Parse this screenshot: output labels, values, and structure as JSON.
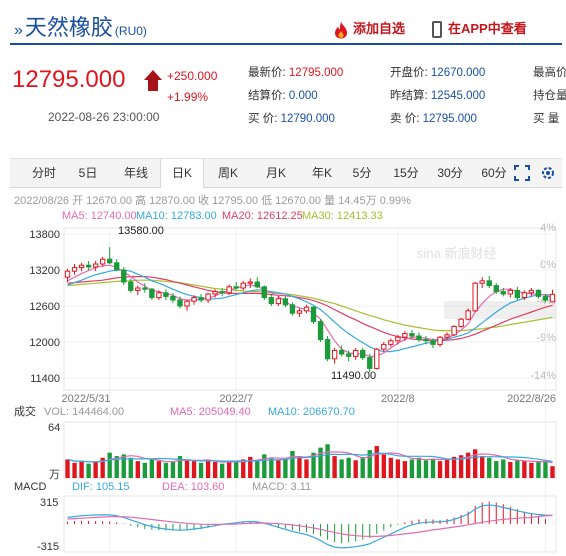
{
  "header": {
    "title": "天然橡胶",
    "code": "(RU0)",
    "add_favorite": "添加自选",
    "view_in_app": "在APP中查看"
  },
  "quote": {
    "price": "12795.000",
    "change": "+250.000",
    "change_pct": "+1.99%",
    "datetime": "2022-08-26 23:00:00",
    "latest_label": "最新价:",
    "latest": "12795.000",
    "settle_label": "结算价:",
    "settle": "0.000",
    "buy_label": "买  价:",
    "buy": "12790.000",
    "open_label": "开盘价:",
    "open": "12670.000",
    "prev_settle_label": "昨结算:",
    "prev_settle": "12545.000",
    "sell_label": "卖  价:",
    "sell": "12795.000",
    "high_label": "最高价",
    "oi_label": "持仓量",
    "buy_vol_label": "买  量"
  },
  "tabs": [
    "分时",
    "5日",
    "年线",
    "日K",
    "周K",
    "月K",
    "年K",
    "5分",
    "15分",
    "30分",
    "60分"
  ],
  "active_tab": "日K",
  "chart_data": {
    "type": "candlestick",
    "info_line": "2022/08/26 开 12670.00 高 12870.00 收 12795.00 低 12670.00 量 14.45万 0.99%",
    "ma": {
      "MA5": "MA5: 12740.00",
      "MA10": "MA10: 12783.00",
      "MA20": "MA20: 12612.25",
      "MA30": "MA30: 12413.33"
    },
    "y_ticks": [
      "13800",
      "13200",
      "12600",
      "12000",
      "11400"
    ],
    "pct_ticks": [
      "4%",
      "0%",
      "-4%",
      "-9%",
      "-14%"
    ],
    "x_ticks": [
      "2022/5/31",
      "2022/7",
      "2022/8",
      "2022/8/26"
    ],
    "ylim": [
      11200,
      13900
    ],
    "high_label": "13580.00",
    "low_label": "11490.00",
    "watermark": "sina 新浪财经",
    "volume": {
      "title": "成交",
      "vol": "VOL: 144464.00",
      "ma5": "MA5: 205049.40",
      "ma10": "MA10: 206670.70",
      "y_top": "64",
      "unit": "万"
    },
    "macd": {
      "title": "MACD",
      "dif": "DIF: 105.15",
      "dea": "DEA: 103.60",
      "macd": "MACD: 3.11",
      "y_top": "315",
      "y_bottom": "-315"
    },
    "candles": [
      [
        13080,
        13220,
        13000,
        13180
      ],
      [
        13180,
        13300,
        13120,
        13240
      ],
      [
        13240,
        13320,
        13180,
        13280
      ],
      [
        13280,
        13350,
        13200,
        13250
      ],
      [
        13250,
        13350,
        13180,
        13300
      ],
      [
        13300,
        13420,
        13250,
        13380
      ],
      [
        13380,
        13580,
        13300,
        13320
      ],
      [
        13320,
        13380,
        13180,
        13200
      ],
      [
        13200,
        13250,
        12950,
        13000
      ],
      [
        13000,
        13060,
        12820,
        12860
      ],
      [
        12860,
        12940,
        12780,
        12900
      ],
      [
        12900,
        12980,
        12820,
        12880
      ],
      [
        12880,
        12900,
        12700,
        12740
      ],
      [
        12740,
        12860,
        12700,
        12820
      ],
      [
        12820,
        12880,
        12700,
        12760
      ],
      [
        12760,
        12820,
        12650,
        12700
      ],
      [
        12700,
        12760,
        12560,
        12600
      ],
      [
        12600,
        12700,
        12520,
        12680
      ],
      [
        12680,
        12780,
        12620,
        12740
      ],
      [
        12740,
        12800,
        12660,
        12700
      ],
      [
        12700,
        12820,
        12650,
        12800
      ],
      [
        12800,
        12880,
        12740,
        12840
      ],
      [
        12840,
        12900,
        12760,
        12820
      ],
      [
        12820,
        12960,
        12780,
        12920
      ],
      [
        12920,
        13000,
        12860,
        12900
      ],
      [
        12900,
        13020,
        12860,
        12980
      ],
      [
        12980,
        13060,
        12900,
        13000
      ],
      [
        13000,
        13080,
        12900,
        12920
      ],
      [
        12920,
        12940,
        12700,
        12740
      ],
      [
        12740,
        12800,
        12600,
        12640
      ],
      [
        12640,
        12760,
        12600,
        12720
      ],
      [
        12720,
        12760,
        12580,
        12620
      ],
      [
        12620,
        12660,
        12440,
        12480
      ],
      [
        12480,
        12560,
        12420,
        12520
      ],
      [
        12520,
        12620,
        12480,
        12580
      ],
      [
        12580,
        12600,
        12300,
        12340
      ],
      [
        12340,
        12380,
        12000,
        12040
      ],
      [
        12040,
        12100,
        11680,
        11720
      ],
      [
        11720,
        11900,
        11640,
        11860
      ],
      [
        11860,
        11940,
        11760,
        11800
      ],
      [
        11800,
        11860,
        11680,
        11760
      ],
      [
        11760,
        11900,
        11700,
        11860
      ],
      [
        11860,
        11900,
        11700,
        11740
      ],
      [
        11740,
        11800,
        11490,
        11560
      ],
      [
        11560,
        11900,
        11540,
        11880
      ],
      [
        11880,
        12000,
        11840,
        11960
      ],
      [
        11960,
        12060,
        11920,
        12020
      ],
      [
        12020,
        12120,
        11960,
        12080
      ],
      [
        12080,
        12180,
        12020,
        12140
      ],
      [
        12140,
        12200,
        12060,
        12100
      ],
      [
        12100,
        12160,
        12000,
        12040
      ],
      [
        12040,
        12100,
        11960,
        12020
      ],
      [
        12020,
        12060,
        11900,
        11960
      ],
      [
        11960,
        12100,
        11920,
        12080
      ],
      [
        12080,
        12160,
        12040,
        12120
      ],
      [
        12120,
        12280,
        12100,
        12260
      ],
      [
        12260,
        12400,
        12240,
        12380
      ],
      [
        12380,
        12560,
        12360,
        12520
      ],
      [
        12520,
        13000,
        12500,
        12980
      ],
      [
        12980,
        13080,
        12900,
        13020
      ],
      [
        13020,
        13100,
        12900,
        12940
      ],
      [
        12940,
        12980,
        12800,
        12840
      ],
      [
        12840,
        12900,
        12760,
        12800
      ],
      [
        12800,
        12900,
        12740,
        12860
      ],
      [
        12860,
        12920,
        12700,
        12740
      ],
      [
        12740,
        12860,
        12700,
        12820
      ],
      [
        12820,
        12900,
        12760,
        12860
      ],
      [
        12860,
        12880,
        12720,
        12760
      ],
      [
        12760,
        12800,
        12660,
        12700
      ],
      [
        12670,
        12870,
        12670,
        12795
      ]
    ],
    "ma5_line": [
      13020,
      13080,
      13140,
      13190,
      13240,
      13270,
      13280,
      13240,
      13170,
      13090,
      13000,
      12930,
      12860,
      12840,
      12810,
      12780,
      12720,
      12700,
      12700,
      12710,
      12730,
      12770,
      12820,
      12860,
      12900,
      12930,
      12950,
      12930,
      12870,
      12820,
      12760,
      12680,
      12600,
      12570,
      12540,
      12480,
      12380,
      12200,
      12020,
      11880,
      11820,
      11800,
      11800,
      11760,
      11760,
      11820,
      11900,
      11980,
      12040,
      12080,
      12080,
      12060,
      12040,
      12040,
      12070,
      12120,
      12200,
      12300,
      12500,
      12640,
      12760,
      12840,
      12880,
      12880,
      12840,
      12820,
      12800,
      12800,
      12780,
      12740
    ],
    "ma10_line": [
      12950,
      12990,
      13030,
      13080,
      13120,
      13150,
      13180,
      13200,
      13200,
      13180,
      13130,
      13080,
      13020,
      12980,
      12930,
      12880,
      12830,
      12790,
      12760,
      12740,
      12720,
      12720,
      12730,
      12760,
      12790,
      12820,
      12850,
      12870,
      12860,
      12840,
      12820,
      12800,
      12760,
      12720,
      12670,
      12610,
      12540,
      12440,
      12330,
      12230,
      12140,
      12060,
      11990,
      11920,
      11870,
      11840,
      11840,
      11860,
      11890,
      11920,
      11950,
      11980,
      12000,
      12030,
      12050,
      12080,
      12110,
      12150,
      12230,
      12320,
      12410,
      12500,
      12580,
      12650,
      12690,
      12730,
      12760,
      12790,
      12790,
      12783
    ],
    "ma20_line": [
      12980,
      12990,
      13000,
      13010,
      13020,
      13030,
      13050,
      13070,
      13080,
      13090,
      13090,
      13090,
      13080,
      13060,
      13040,
      13010,
      12980,
      12950,
      12920,
      12890,
      12860,
      12840,
      12820,
      12810,
      12810,
      12810,
      12810,
      12810,
      12800,
      12790,
      12780,
      12770,
      12760,
      12740,
      12720,
      12690,
      12650,
      12600,
      12540,
      12480,
      12420,
      12370,
      12310,
      12260,
      12210,
      12160,
      12120,
      12090,
      12070,
      12050,
      12040,
      12030,
      12020,
      12020,
      12030,
      12040,
      12060,
      12090,
      12130,
      12180,
      12230,
      12280,
      12330,
      12380,
      12420,
      12460,
      12500,
      12540,
      12580,
      12612
    ],
    "ma30_line": [
      12940,
      12950,
      12960,
      12970,
      12980,
      12990,
      13000,
      13010,
      13020,
      13020,
      13030,
      13030,
      13030,
      13020,
      13010,
      13000,
      12990,
      12970,
      12950,
      12930,
      12910,
      12890,
      12880,
      12870,
      12860,
      12850,
      12840,
      12840,
      12830,
      12820,
      12810,
      12800,
      12790,
      12770,
      12750,
      12730,
      12700,
      12670,
      12640,
      12600,
      12560,
      12520,
      12480,
      12440,
      12410,
      12370,
      12340,
      12310,
      12280,
      12260,
      12240,
      12220,
      12200,
      12190,
      12190,
      12190,
      12190,
      12200,
      12210,
      12220,
      12240,
      12250,
      12270,
      12290,
      12310,
      12330,
      12350,
      12370,
      12390,
      12413
    ],
    "volumes": [
      22,
      18,
      20,
      17,
      19,
      24,
      30,
      26,
      28,
      24,
      20,
      18,
      22,
      20,
      18,
      19,
      26,
      22,
      20,
      18,
      21,
      19,
      17,
      20,
      19,
      22,
      25,
      20,
      28,
      24,
      21,
      23,
      32,
      26,
      22,
      30,
      36,
      40,
      26,
      22,
      24,
      21,
      25,
      33,
      38,
      28,
      24,
      22,
      20,
      22,
      24,
      21,
      23,
      20,
      22,
      25,
      27,
      30,
      34,
      26,
      24,
      20,
      22,
      19,
      21,
      20,
      18,
      19,
      20,
      14
    ],
    "macd_bars": [
      30,
      35,
      40,
      38,
      36,
      34,
      30,
      20,
      5,
      -20,
      -40,
      -60,
      -70,
      -75,
      -80,
      -80,
      -85,
      -80,
      -70,
      -60,
      -45,
      -30,
      -15,
      0,
      10,
      20,
      25,
      20,
      5,
      -15,
      -35,
      -55,
      -75,
      -90,
      -100,
      -120,
      -150,
      -190,
      -220,
      -230,
      -220,
      -210,
      -190,
      -170,
      -120,
      -80,
      -40,
      -10,
      20,
      40,
      55,
      60,
      55,
      50,
      60,
      80,
      110,
      150,
      220,
      260,
      270,
      260,
      240,
      210,
      180,
      150,
      120,
      90,
      60,
      3
    ],
    "dif_line": [
      80,
      90,
      100,
      105,
      110,
      112,
      110,
      100,
      80,
      50,
      20,
      -10,
      -30,
      -50,
      -60,
      -70,
      -75,
      -70,
      -60,
      -50,
      -35,
      -20,
      -5,
      5,
      15,
      25,
      30,
      25,
      10,
      -15,
      -40,
      -65,
      -90,
      -110,
      -130,
      -160,
      -200,
      -250,
      -280,
      -290,
      -285,
      -275,
      -260,
      -240,
      -200,
      -160,
      -120,
      -80,
      -40,
      -10,
      10,
      20,
      25,
      25,
      35,
      55,
      85,
      120,
      180,
      220,
      230,
      220,
      200,
      180,
      160,
      140,
      125,
      115,
      108,
      105
    ],
    "dea_line": [
      60,
      65,
      70,
      75,
      80,
      85,
      88,
      90,
      88,
      82,
      74,
      64,
      54,
      44,
      34,
      24,
      16,
      8,
      2,
      -2,
      -4,
      -5,
      -4,
      -3,
      0,
      4,
      8,
      11,
      11,
      9,
      4,
      -3,
      -12,
      -22,
      -34,
      -48,
      -64,
      -83,
      -102,
      -120,
      -133,
      -142,
      -148,
      -150,
      -150,
      -145,
      -139,
      -130,
      -120,
      -110,
      -98,
      -85,
      -72,
      -60,
      -48,
      -36,
      -24,
      -10,
      6,
      20,
      34,
      46,
      56,
      63,
      70,
      75,
      79,
      92,
      98,
      103
    ]
  }
}
